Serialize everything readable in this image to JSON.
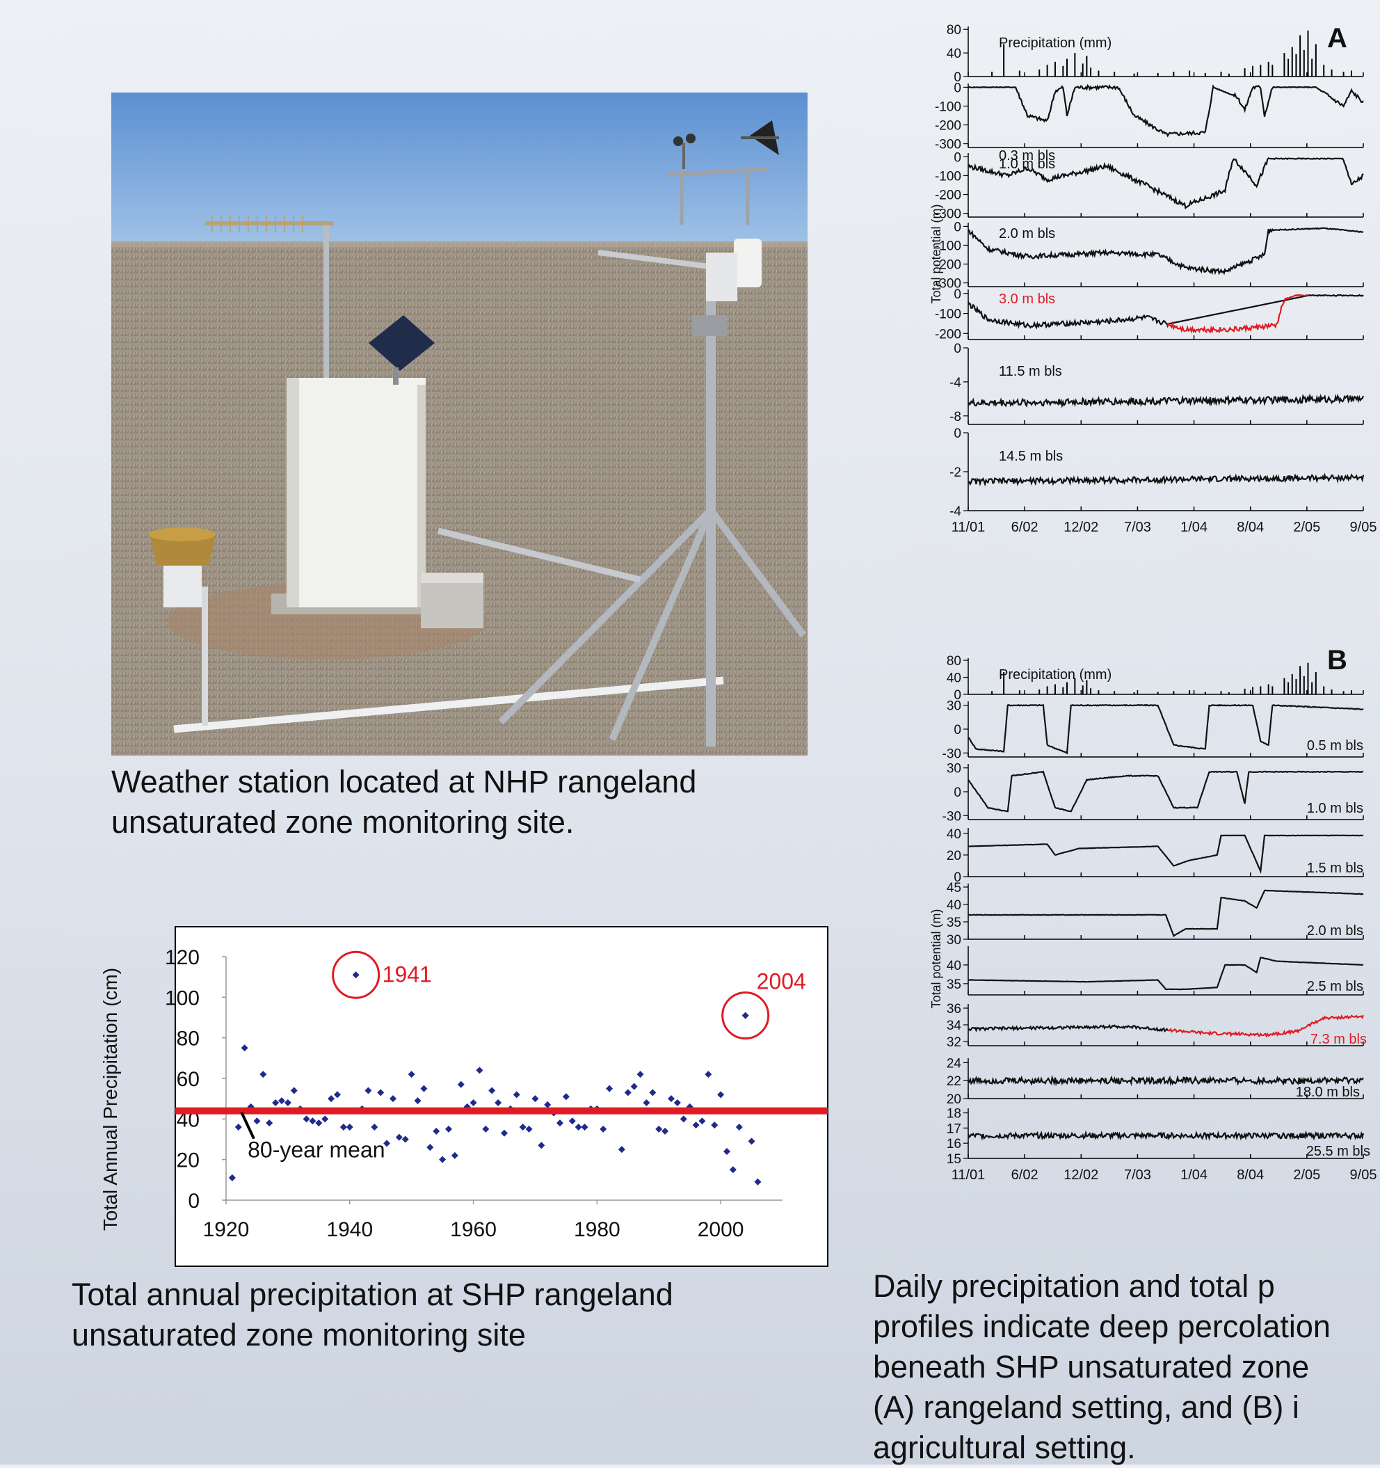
{
  "photo": {
    "caption_lines": [
      "Weather station located at NHP rangeland",
      "unsaturated zone monitoring site."
    ]
  },
  "scatter": {
    "caption_lines": [
      "Total annual precipitation at SHP rangeland",
      "unsaturated zone monitoring site"
    ]
  },
  "profiles": {
    "caption_lines": [
      "Daily precipitation and total p",
      "profiles indicate deep percolation",
      "beneath SHP unsaturated zone",
      "(A) rangeland setting, and (B) i",
      "agricultural setting."
    ]
  },
  "colors": {
    "red": "#e01b24",
    "marker": "#1f2a8a",
    "highlight_series": "#e01b24"
  },
  "chart_data": [
    {
      "type": "scatter",
      "title": "",
      "ylabel": "Total Annual Precipitation (cm)",
      "xlabel": "",
      "xlim": [
        1920,
        2010
      ],
      "ylim": [
        0,
        120
      ],
      "x_ticks": [
        "1920",
        "1940",
        "1960",
        "1980",
        "2000"
      ],
      "y_ticks": [
        "0",
        "20",
        "40",
        "60",
        "80",
        "100",
        "120"
      ],
      "grid": false,
      "mean_value": 44,
      "mean_label": "80-year mean",
      "highlights": [
        {
          "label": "1941",
          "x": 1941,
          "y": 111
        },
        {
          "label": "2004",
          "x": 2004,
          "y": 91
        }
      ],
      "points": [
        [
          1921,
          11
        ],
        [
          1922,
          36
        ],
        [
          1923,
          75
        ],
        [
          1924,
          46
        ],
        [
          1925,
          39
        ],
        [
          1926,
          62
        ],
        [
          1927,
          38
        ],
        [
          1928,
          48
        ],
        [
          1929,
          49
        ],
        [
          1930,
          48
        ],
        [
          1931,
          54
        ],
        [
          1932,
          45
        ],
        [
          1933,
          40
        ],
        [
          1934,
          39
        ],
        [
          1935,
          38
        ],
        [
          1936,
          40
        ],
        [
          1937,
          50
        ],
        [
          1938,
          52
        ],
        [
          1939,
          36
        ],
        [
          1940,
          36
        ],
        [
          1941,
          111
        ],
        [
          1942,
          45
        ],
        [
          1943,
          54
        ],
        [
          1944,
          36
        ],
        [
          1945,
          53
        ],
        [
          1946,
          28
        ],
        [
          1947,
          50
        ],
        [
          1948,
          31
        ],
        [
          1949,
          30
        ],
        [
          1950,
          62
        ],
        [
          1951,
          49
        ],
        [
          1952,
          55
        ],
        [
          1953,
          26
        ],
        [
          1954,
          34
        ],
        [
          1955,
          20
        ],
        [
          1956,
          35
        ],
        [
          1957,
          22
        ],
        [
          1958,
          57
        ],
        [
          1959,
          46
        ],
        [
          1960,
          48
        ],
        [
          1961,
          64
        ],
        [
          1962,
          35
        ],
        [
          1963,
          54
        ],
        [
          1964,
          48
        ],
        [
          1965,
          33
        ],
        [
          1966,
          45
        ],
        [
          1967,
          52
        ],
        [
          1968,
          36
        ],
        [
          1969,
          35
        ],
        [
          1970,
          50
        ],
        [
          1971,
          27
        ],
        [
          1972,
          47
        ],
        [
          1973,
          43
        ],
        [
          1974,
          38
        ],
        [
          1975,
          51
        ],
        [
          1976,
          39
        ],
        [
          1977,
          36
        ],
        [
          1978,
          36
        ],
        [
          1979,
          45
        ],
        [
          1980,
          45
        ],
        [
          1981,
          35
        ],
        [
          1982,
          55
        ],
        [
          1983,
          44
        ],
        [
          1984,
          25
        ],
        [
          1985,
          53
        ],
        [
          1986,
          56
        ],
        [
          1987,
          62
        ],
        [
          1988,
          48
        ],
        [
          1989,
          53
        ],
        [
          1990,
          35
        ],
        [
          1991,
          34
        ],
        [
          1992,
          50
        ],
        [
          1993,
          48
        ],
        [
          1994,
          40
        ],
        [
          1995,
          46
        ],
        [
          1996,
          37
        ],
        [
          1997,
          39
        ],
        [
          1998,
          62
        ],
        [
          1999,
          37
        ],
        [
          2000,
          52
        ],
        [
          2001,
          24
        ],
        [
          2002,
          15
        ],
        [
          2003,
          36
        ],
        [
          2004,
          91
        ],
        [
          2005,
          29
        ],
        [
          2006,
          9
        ]
      ]
    },
    {
      "type": "line",
      "panel": "A",
      "xlabel": "",
      "ylabel": "Total potential (m)",
      "x_ticks": [
        "11/01",
        "6/02",
        "12/02",
        "7/03",
        "1/04",
        "8/04",
        "2/05",
        "9/05"
      ],
      "subplots": [
        {
          "label": "Precipitation (mm)",
          "kind": "bars",
          "y_ticks": [
            "80",
            "40",
            "0"
          ],
          "ylim": [
            0,
            85
          ]
        },
        {
          "label": "0.3 m bls",
          "y_ticks": [
            "0",
            "-100",
            "-200",
            "-300"
          ],
          "ylim": [
            -320,
            20
          ]
        },
        {
          "label": "1.0 m bls",
          "y_ticks": [
            "0",
            "-100",
            "-200",
            "-300"
          ],
          "ylim": [
            -320,
            20
          ]
        },
        {
          "label": "2.0 m bls",
          "y_ticks": [
            "0",
            "-100",
            "-200",
            "-300"
          ],
          "ylim": [
            -320,
            20
          ]
        },
        {
          "label": "3.0 m bls",
          "highlight": true,
          "y_ticks": [
            "0",
            "-100",
            "-200"
          ],
          "ylim": [
            -230,
            20
          ]
        },
        {
          "label": "11.5 m bls",
          "y_ticks": [
            "0",
            "-4",
            "-8"
          ],
          "ylim": [
            -9,
            0
          ]
        },
        {
          "label": "14.5 m bls",
          "y_ticks": [
            "0",
            "-2",
            "-4"
          ],
          "ylim": [
            -4,
            0
          ]
        }
      ]
    },
    {
      "type": "line",
      "panel": "B",
      "xlabel": "",
      "ylabel": "Total potential (m)",
      "x_ticks": [
        "11/01",
        "6/02",
        "12/02",
        "7/03",
        "1/04",
        "8/04",
        "2/05",
        "9/05"
      ],
      "subplots": [
        {
          "label": "Precipitation (mm)",
          "kind": "bars",
          "y_ticks": [
            "80",
            "40",
            "0"
          ],
          "ylim": [
            0,
            85
          ]
        },
        {
          "label": "0.5 m bls",
          "y_ticks": [
            "30",
            "0",
            "-30"
          ],
          "ylim": [
            -35,
            35
          ]
        },
        {
          "label": "1.0 m bls",
          "y_ticks": [
            "30",
            "0",
            "-30"
          ],
          "ylim": [
            -35,
            35
          ]
        },
        {
          "label": "1.5 m bls",
          "y_ticks": [
            "40",
            "20",
            "0"
          ],
          "ylim": [
            0,
            45
          ]
        },
        {
          "label": "2.0 m bls",
          "y_ticks": [
            "45",
            "40",
            "35",
            "30"
          ],
          "ylim": [
            30,
            46
          ]
        },
        {
          "label": "2.5 m bls",
          "y_ticks": [
            "40",
            "35"
          ],
          "ylim": [
            32,
            45
          ]
        },
        {
          "label": "7.3 m bls",
          "highlight": true,
          "y_ticks": [
            "36",
            "34",
            "32"
          ],
          "ylim": [
            31.5,
            36.5
          ]
        },
        {
          "label": "18.0 m bls",
          "y_ticks": [
            "24",
            "22",
            "20"
          ],
          "ylim": [
            20,
            24.5
          ]
        },
        {
          "label": "25.5 m bls",
          "y_ticks": [
            "18",
            "17",
            "16",
            "15"
          ],
          "ylim": [
            15,
            18.3
          ]
        }
      ]
    }
  ]
}
